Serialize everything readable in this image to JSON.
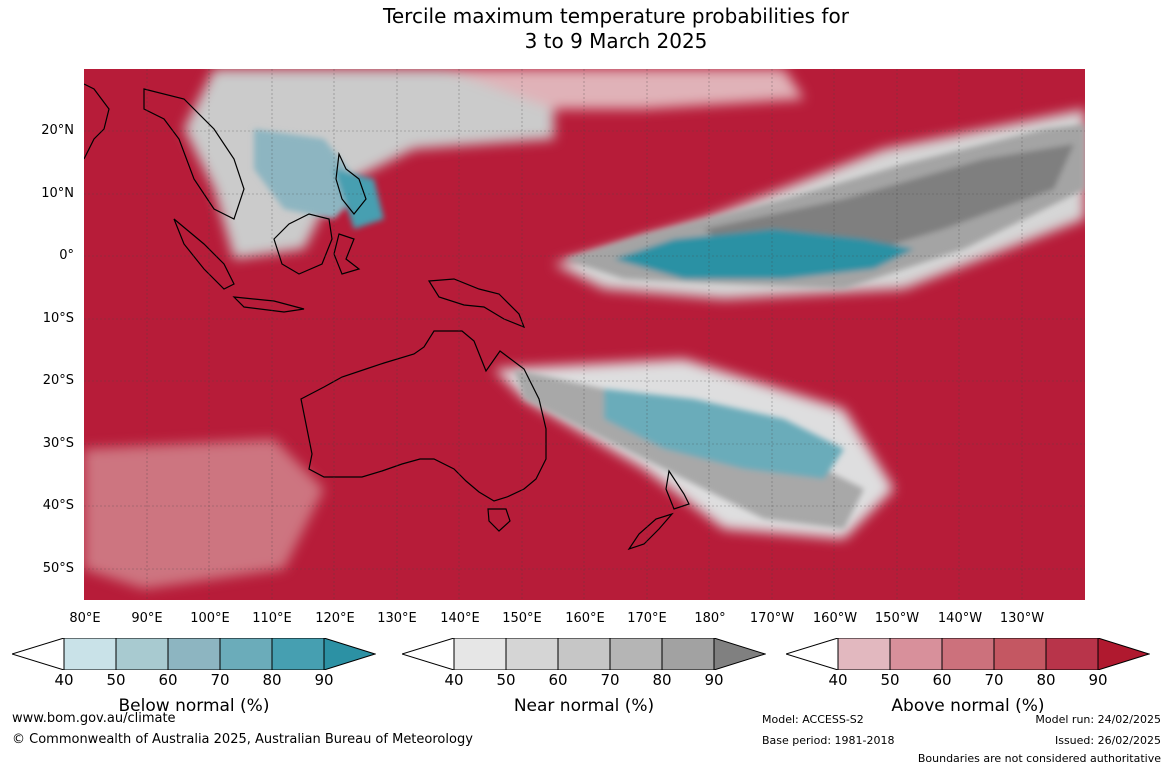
{
  "title": {
    "line1": "Tercile maximum temperature probabilities for",
    "line2": "3 to 9 March 2025"
  },
  "map": {
    "lat_labels": [
      "20°N",
      "10°N",
      "0°",
      "10°S",
      "20°S",
      "30°S",
      "40°S",
      "50°S"
    ],
    "lon_labels": [
      "80°E",
      "90°E",
      "100°E",
      "110°E",
      "120°E",
      "130°E",
      "140°E",
      "150°E",
      "160°E",
      "170°E",
      "180°",
      "170°W",
      "160°W",
      "150°W",
      "140°W",
      "130°W"
    ],
    "extent": {
      "lon_min": 80,
      "lon_max": 240,
      "lat_min": -55,
      "lat_max": 30
    },
    "colors": {
      "above_dominant": "#b71c39",
      "ocean_base": "#b71c39"
    }
  },
  "legends": [
    {
      "name": "Below normal (%)",
      "ticks": [
        "40",
        "50",
        "60",
        "70",
        "80",
        "90"
      ],
      "colors": [
        "#ffffff",
        "#c9e2e8",
        "#a8cad0",
        "#8db5c1",
        "#6bacba",
        "#469fb1",
        "#2c91a4"
      ]
    },
    {
      "name": "Near normal (%)",
      "ticks": [
        "40",
        "50",
        "60",
        "70",
        "80",
        "90"
      ],
      "colors": [
        "#ffffff",
        "#e6e6e6",
        "#d5d5d5",
        "#c6c6c6",
        "#b5b5b5",
        "#a2a2a2",
        "#808080"
      ]
    },
    {
      "name": "Above normal (%)",
      "ticks": [
        "40",
        "50",
        "60",
        "70",
        "80",
        "90"
      ],
      "colors": [
        "#ffffff",
        "#e2b8bf",
        "#d8909b",
        "#cc717c",
        "#c45762",
        "#b8344a",
        "#b0192f"
      ]
    }
  ],
  "footer": {
    "website": "www.bom.gov.au/climate",
    "copyright": "© Commonwealth of Australia 2025, Australian Bureau of Meteorology",
    "model": "Model: ACCESS-S2",
    "base_period": "Base period: 1981-2018",
    "model_run": "Model run: 24/02/2025",
    "issued": "Issued: 26/02/2025",
    "disclaimer": "Boundaries are not considered authoritative"
  }
}
